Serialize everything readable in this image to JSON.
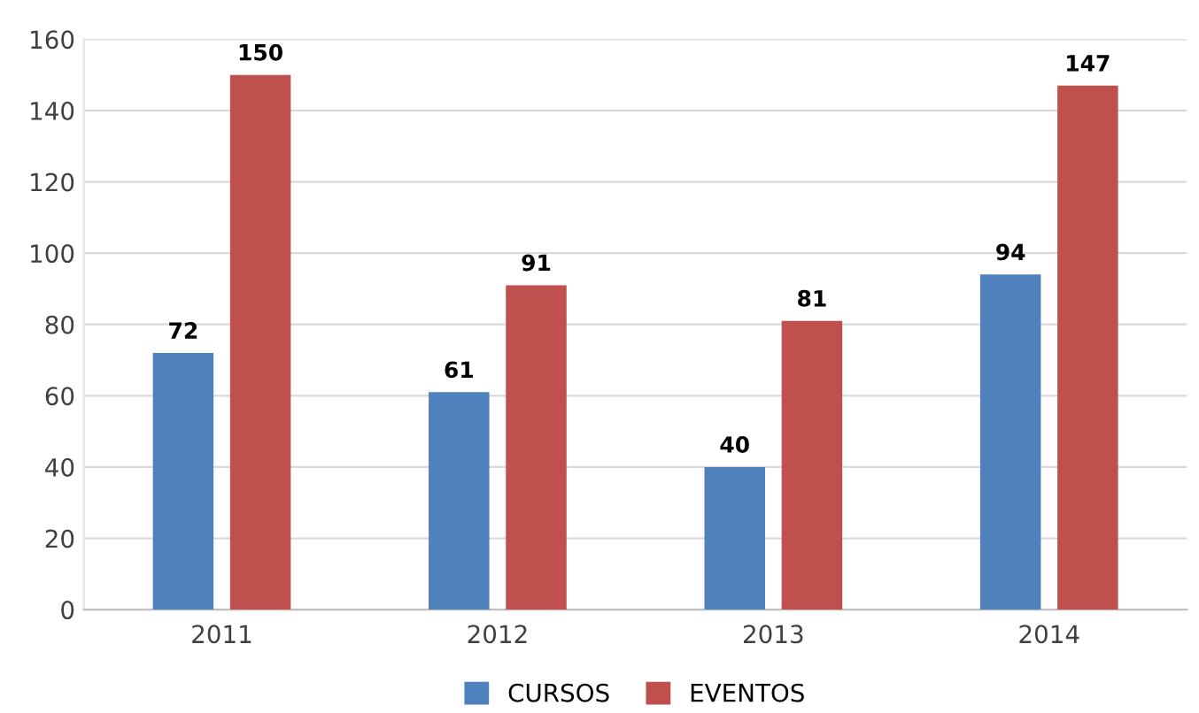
{
  "chart_data": {
    "type": "bar",
    "categories": [
      "2011",
      "2012",
      "2013",
      "2014"
    ],
    "series": [
      {
        "name": "CURSOS",
        "color": "#4f81bd",
        "values": [
          72,
          61,
          40,
          94
        ]
      },
      {
        "name": "EVENTOS",
        "color": "#c0504d",
        "values": [
          150,
          91,
          81,
          147
        ]
      }
    ],
    "ylim": [
      0,
      160
    ],
    "yticks": [
      0,
      20,
      40,
      60,
      80,
      100,
      120,
      140,
      160
    ],
    "grid": "y",
    "legend": "bottom",
    "data_labels": true
  }
}
